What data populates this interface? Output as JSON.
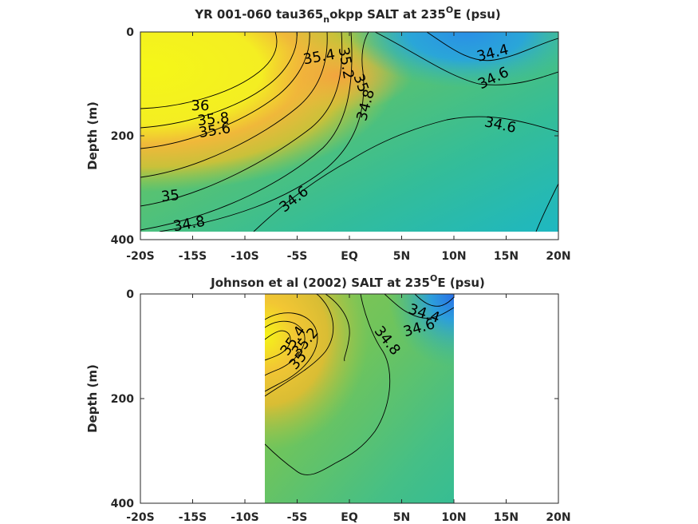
{
  "chart_data": [
    {
      "type": "contour",
      "title_main": "YR 001-060 tau365",
      "title_sub": "n",
      "title_rest": "okpp SALT at 235",
      "title_sup": "O",
      "title_end": "E (psu)",
      "ylabel": "Depth (m)",
      "xlabel": "",
      "xlim": [
        -20,
        20
      ],
      "ylim": [
        0,
        400
      ],
      "x_ticks": [
        -20,
        -15,
        -10,
        -5,
        0,
        5,
        10,
        15,
        20
      ],
      "x_tick_labels": [
        "-20S",
        "-15S",
        "-10S",
        "-5S",
        "EQ",
        "5N",
        "10N",
        "15N",
        "20N"
      ],
      "y_ticks": [
        0,
        200,
        400
      ],
      "y_tick_labels": [
        "0",
        "200",
        "400"
      ],
      "data_extent": {
        "x": [
          -20,
          20
        ],
        "depth": [
          0,
          385
        ]
      },
      "contour_labels": [
        {
          "text": "35.4",
          "x": -4.5,
          "depth": 52
        },
        {
          "text": "35.2",
          "x": -1.2,
          "depth": 55
        },
        {
          "text": "35",
          "x": 0.5,
          "depth": 100
        },
        {
          "text": "34.8",
          "x": 1.9,
          "depth": 140
        },
        {
          "text": "34.4",
          "x": 13.6,
          "depth": 40
        },
        {
          "text": "34.6",
          "x": 14,
          "depth": 90
        },
        {
          "text": "36",
          "x": -14.3,
          "depth": 140
        },
        {
          "text": "35.8",
          "x": -12.9,
          "depth": 165
        },
        {
          "text": "35.6",
          "x": -13.2,
          "depth": 190
        },
        {
          "text": "34.6",
          "x": 14.7,
          "depth": 180
        },
        {
          "text": "35",
          "x": -17.1,
          "depth": 315
        },
        {
          "text": "34.6",
          "x": -5.2,
          "depth": 320
        },
        {
          "text": "34.8",
          "x": -15,
          "depth": 368
        }
      ]
    },
    {
      "type": "contour",
      "title_main": "Johnson et al (2002) SALT at 235",
      "title_sup": "O",
      "title_end": "E (psu)",
      "ylabel": "Depth (m)",
      "xlabel": "",
      "xlim": [
        -20,
        20
      ],
      "ylim": [
        0,
        400
      ],
      "x_ticks": [
        -20,
        -15,
        -10,
        -5,
        0,
        5,
        10,
        15,
        20
      ],
      "x_tick_labels": [
        "-20S",
        "-15S",
        "-10S",
        "-5S",
        "EQ",
        "5N",
        "10N",
        "15N",
        "20N"
      ],
      "y_ticks": [
        0,
        200,
        400
      ],
      "y_tick_labels": [
        "0",
        "200",
        "400"
      ],
      "data_extent": {
        "x": [
          -8,
          10
        ],
        "depth": [
          0,
          400
        ]
      },
      "contour_labels": [
        {
          "text": "35.4",
          "x": -4.9,
          "depth": 105
        },
        {
          "text": "35.2",
          "x": -4.5,
          "depth": 102
        },
        {
          "text": "35",
          "x": -4.8,
          "depth": 138
        },
        {
          "text": "34.8",
          "x": 3.5,
          "depth": 92
        },
        {
          "text": "34.4",
          "x": 7.1,
          "depth": 45
        },
        {
          "text": "34.6",
          "x": 6.8,
          "depth": 65
        }
      ]
    }
  ]
}
